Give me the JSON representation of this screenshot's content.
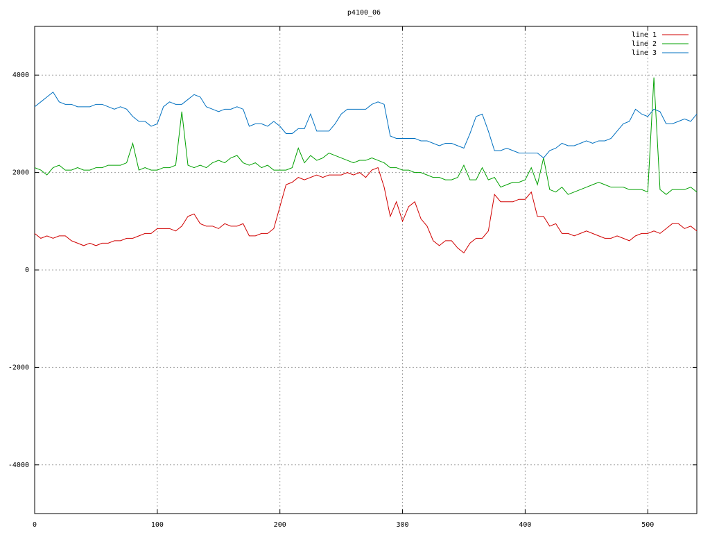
{
  "chart_data": {
    "type": "line",
    "title": "p4100_06",
    "x": [
      0,
      5,
      10,
      15,
      20,
      25,
      30,
      35,
      40,
      45,
      50,
      55,
      60,
      65,
      70,
      75,
      80,
      85,
      90,
      95,
      100,
      105,
      110,
      115,
      120,
      125,
      130,
      135,
      140,
      145,
      150,
      155,
      160,
      165,
      170,
      175,
      180,
      185,
      190,
      195,
      200,
      205,
      210,
      215,
      220,
      225,
      230,
      235,
      240,
      245,
      250,
      255,
      260,
      265,
      270,
      275,
      280,
      285,
      290,
      295,
      300,
      305,
      310,
      315,
      320,
      325,
      330,
      335,
      340,
      345,
      350,
      355,
      360,
      365,
      370,
      375,
      380,
      385,
      390,
      395,
      400,
      405,
      410,
      415,
      420,
      425,
      430,
      435,
      440,
      445,
      450,
      455,
      460,
      465,
      470,
      475,
      480,
      485,
      490,
      495,
      500,
      505,
      510,
      515,
      520,
      525,
      530,
      535,
      540
    ],
    "series": [
      {
        "name": "line 1",
        "color": "#d00000",
        "values": [
          750,
          650,
          700,
          650,
          700,
          700,
          600,
          550,
          500,
          550,
          500,
          550,
          550,
          600,
          600,
          650,
          650,
          700,
          750,
          750,
          850,
          850,
          850,
          800,
          900,
          1100,
          1150,
          950,
          900,
          900,
          850,
          950,
          900,
          900,
          950,
          700,
          700,
          750,
          750,
          850,
          1300,
          1750,
          1800,
          1900,
          1850,
          1900,
          1950,
          1900,
          1950,
          1950,
          1950,
          2000,
          1950,
          2000,
          1900,
          2050,
          2100,
          1700,
          1100,
          1400,
          1000,
          1300,
          1400,
          1050,
          900,
          600,
          500,
          600,
          600,
          450,
          350,
          550,
          650,
          650,
          800,
          1550,
          1400,
          1400,
          1400,
          1450,
          1450,
          1600,
          1100,
          1100,
          900,
          950,
          750,
          750,
          700,
          750,
          800,
          750,
          700,
          650,
          650,
          700,
          650,
          600,
          700,
          750,
          750,
          800,
          750,
          850,
          950,
          950,
          850,
          900,
          800
        ]
      },
      {
        "name": "line 2",
        "color": "#00a000",
        "values": [
          2100,
          2050,
          1950,
          2100,
          2150,
          2050,
          2050,
          2100,
          2050,
          2050,
          2100,
          2100,
          2150,
          2150,
          2150,
          2200,
          2600,
          2050,
          2100,
          2050,
          2050,
          2100,
          2100,
          2150,
          3250,
          2150,
          2100,
          2150,
          2100,
          2200,
          2250,
          2200,
          2300,
          2350,
          2200,
          2150,
          2200,
          2100,
          2150,
          2050,
          2050,
          2050,
          2100,
          2500,
          2200,
          2350,
          2250,
          2300,
          2400,
          2350,
          2300,
          2250,
          2200,
          2250,
          2250,
          2300,
          2250,
          2200,
          2100,
          2100,
          2050,
          2050,
          2000,
          2000,
          1950,
          1900,
          1900,
          1850,
          1850,
          1900,
          2150,
          1850,
          1850,
          2100,
          1850,
          1900,
          1700,
          1750,
          1800,
          1800,
          1850,
          2100,
          1750,
          2300,
          1650,
          1600,
          1700,
          1550,
          1600,
          1650,
          1700,
          1750,
          1800,
          1750,
          1700,
          1700,
          1700,
          1650,
          1650,
          1650,
          1600,
          3950,
          1650,
          1550,
          1650,
          1650,
          1650,
          1700,
          1600
        ]
      },
      {
        "name": "line 3",
        "color": "#0070c0",
        "values": [
          3350,
          3450,
          3550,
          3650,
          3450,
          3400,
          3400,
          3350,
          3350,
          3350,
          3400,
          3400,
          3350,
          3300,
          3350,
          3300,
          3150,
          3050,
          3050,
          2950,
          3000,
          3350,
          3450,
          3400,
          3400,
          3500,
          3600,
          3550,
          3350,
          3300,
          3250,
          3300,
          3300,
          3350,
          3300,
          2950,
          3000,
          3000,
          2950,
          3050,
          2950,
          2800,
          2800,
          2900,
          2900,
          3200,
          2850,
          2850,
          2850,
          3000,
          3200,
          3300,
          3300,
          3300,
          3300,
          3400,
          3450,
          3400,
          2750,
          2700,
          2700,
          2700,
          2700,
          2650,
          2650,
          2600,
          2550,
          2600,
          2600,
          2550,
          2500,
          2800,
          3150,
          3200,
          2850,
          2450,
          2450,
          2500,
          2450,
          2400,
          2400,
          2400,
          2400,
          2300,
          2450,
          2500,
          2600,
          2550,
          2550,
          2600,
          2650,
          2600,
          2650,
          2650,
          2700,
          2850,
          3000,
          3050,
          3300,
          3200,
          3150,
          3300,
          3250,
          3000,
          3000,
          3050,
          3100,
          3050,
          3200
        ]
      }
    ],
    "xlim": [
      0,
      540
    ],
    "xticks": [
      0,
      100,
      200,
      300,
      400,
      500
    ],
    "ylim": [
      -5000,
      5000
    ],
    "yticks": [
      -4000,
      -2000,
      0,
      2000,
      4000
    ],
    "grid": true,
    "legend": "top-right"
  }
}
